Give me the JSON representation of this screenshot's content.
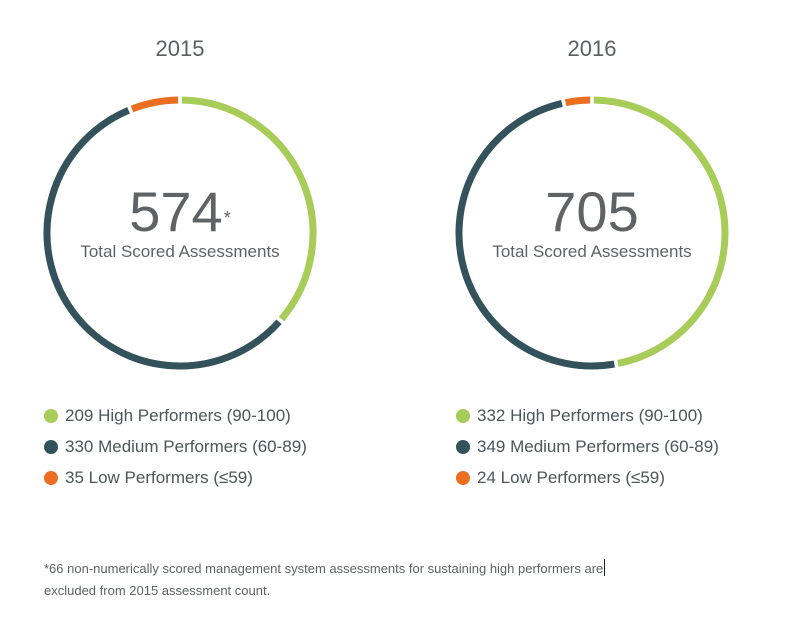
{
  "colors": {
    "high": "#a7cc58",
    "medium": "#34525b",
    "low": "#ec6f21"
  },
  "chart_data": [
    {
      "type": "pie",
      "title": "2015",
      "center_value": "574",
      "center_mark": "*",
      "center_label": "Total Scored Assessments",
      "slices": [
        {
          "label": "209 High Performers (90-100)",
          "value": 209,
          "color": "#a7cc58"
        },
        {
          "label": "330 Medium Performers (60-89)",
          "value": 330,
          "color": "#34525b"
        },
        {
          "label": "35 Low Performers (≤59)",
          "value": 35,
          "color": "#ec6f21"
        }
      ]
    },
    {
      "type": "pie",
      "title": "2016",
      "center_value": "705",
      "center_mark": "",
      "center_label": "Total Scored Assessments",
      "slices": [
        {
          "label": "332 High Performers (90-100)",
          "value": 332,
          "color": "#a7cc58"
        },
        {
          "label": "349 Medium Performers (60-89)",
          "value": 349,
          "color": "#34525b"
        },
        {
          "label": "24 Low Performers (≤59)",
          "value": 24,
          "color": "#ec6f21"
        }
      ]
    }
  ],
  "footnote": {
    "line1": "*66 non-numerically scored management system assessments for sustaining high performers are",
    "line2": "excluded from 2015 assessment count."
  }
}
